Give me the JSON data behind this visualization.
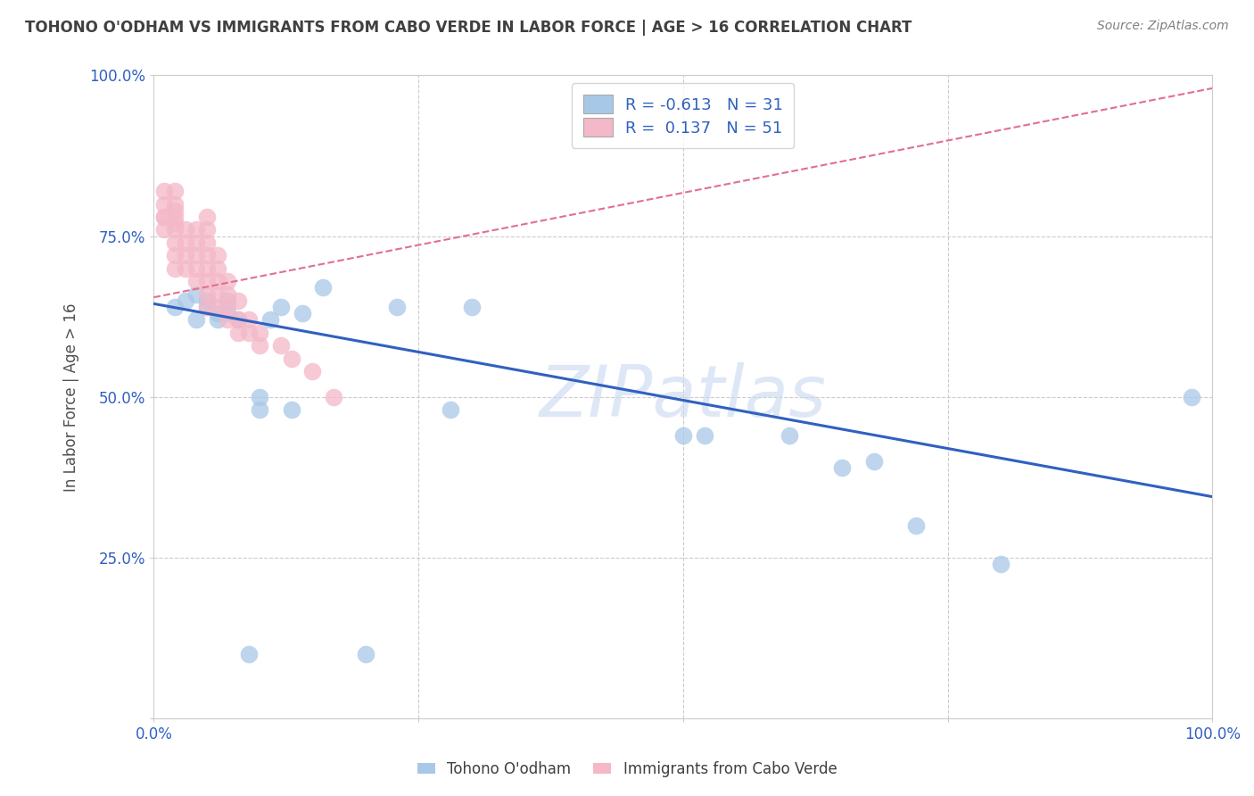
{
  "title": "TOHONO O'ODHAM VS IMMIGRANTS FROM CABO VERDE IN LABOR FORCE | AGE > 16 CORRELATION CHART",
  "source": "Source: ZipAtlas.com",
  "ylabel": "In Labor Force | Age > 16",
  "watermark": "ZIPatlas",
  "blue_label": "Tohono O'odham",
  "pink_label": "Immigrants from Cabo Verde",
  "blue_R": -0.613,
  "blue_N": 31,
  "pink_R": 0.137,
  "pink_N": 51,
  "xlim": [
    0.0,
    1.0
  ],
  "ylim": [
    0.0,
    1.0
  ],
  "blue_scatter_x": [
    0.02,
    0.03,
    0.04,
    0.04,
    0.05,
    0.05,
    0.06,
    0.06,
    0.07,
    0.07,
    0.08,
    0.09,
    0.1,
    0.1,
    0.11,
    0.12,
    0.13,
    0.14,
    0.16,
    0.2,
    0.23,
    0.28,
    0.3,
    0.5,
    0.52,
    0.6,
    0.65,
    0.68,
    0.72,
    0.8,
    0.98
  ],
  "blue_scatter_y": [
    0.64,
    0.65,
    0.66,
    0.62,
    0.64,
    0.65,
    0.62,
    0.63,
    0.63,
    0.65,
    0.62,
    0.1,
    0.48,
    0.5,
    0.62,
    0.64,
    0.48,
    0.63,
    0.67,
    0.1,
    0.64,
    0.48,
    0.64,
    0.44,
    0.44,
    0.44,
    0.39,
    0.4,
    0.3,
    0.24,
    0.5
  ],
  "pink_scatter_x": [
    0.01,
    0.01,
    0.01,
    0.01,
    0.01,
    0.02,
    0.02,
    0.02,
    0.02,
    0.02,
    0.02,
    0.02,
    0.02,
    0.02,
    0.03,
    0.03,
    0.03,
    0.03,
    0.04,
    0.04,
    0.04,
    0.04,
    0.04,
    0.05,
    0.05,
    0.05,
    0.05,
    0.05,
    0.05,
    0.05,
    0.05,
    0.06,
    0.06,
    0.06,
    0.06,
    0.06,
    0.07,
    0.07,
    0.07,
    0.07,
    0.08,
    0.08,
    0.08,
    0.09,
    0.09,
    0.1,
    0.1,
    0.12,
    0.13,
    0.15,
    0.17
  ],
  "pink_scatter_y": [
    0.76,
    0.78,
    0.78,
    0.8,
    0.82,
    0.7,
    0.72,
    0.74,
    0.76,
    0.77,
    0.78,
    0.79,
    0.8,
    0.82,
    0.7,
    0.72,
    0.74,
    0.76,
    0.68,
    0.7,
    0.72,
    0.74,
    0.76,
    0.64,
    0.66,
    0.68,
    0.7,
    0.72,
    0.74,
    0.76,
    0.78,
    0.64,
    0.66,
    0.68,
    0.7,
    0.72,
    0.62,
    0.64,
    0.66,
    0.68,
    0.6,
    0.62,
    0.65,
    0.6,
    0.62,
    0.58,
    0.6,
    0.58,
    0.56,
    0.54,
    0.5
  ],
  "blue_line_start_y": 0.645,
  "blue_line_end_y": 0.345,
  "pink_line_start_y": 0.655,
  "pink_line_end_y": 0.98,
  "blue_color": "#A8C8E8",
  "pink_color": "#F4B8C8",
  "blue_line_color": "#3060C0",
  "pink_line_color": "#E07090",
  "background_color": "#FFFFFF",
  "grid_color": "#CCCCCC",
  "title_color": "#404040",
  "label_color": "#3060C0",
  "legend_text_color": "#3060C0"
}
